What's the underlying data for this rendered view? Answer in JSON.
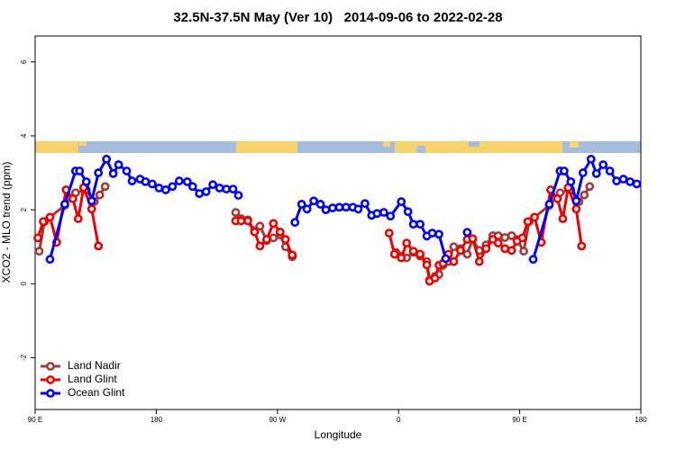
{
  "chart_data": {
    "type": "line",
    "title": "32.5N-37.5N May (Ver 10)   2014-09-06 to 2022-02-28",
    "x_label": "Longitude",
    "y_label": "XCO2 - MLO trend (ppm)",
    "xlim": [
      90,
      540
    ],
    "xticks": [
      {
        "value": 90,
        "label": "90 E"
      },
      180,
      {
        "value": 270,
        "label": "90 W"
      },
      {
        "value": 360,
        "label": "0"
      },
      {
        "value": 450,
        "label": "90 E"
      },
      {
        "value": 540,
        "label": "180"
      }
    ],
    "ylim": [
      -3.4,
      6.7
    ],
    "yticks": [
      -2,
      0,
      2,
      4,
      6
    ],
    "legend": "bottomleft",
    "series": [
      {
        "name": "Land Nadir",
        "color": "#a33a3a",
        "x": [
          93,
          97,
          112,
          120,
          128,
          134,
          138,
          142,
          190,
          239,
          243,
          248,
          253,
          257,
          262,
          267,
          272,
          276,
          281,
          320,
          358,
          362,
          366,
          371,
          376,
          381,
          383,
          387,
          390,
          393,
          397,
          401,
          406,
          411,
          415,
          420,
          425,
          430,
          434,
          439,
          444,
          448,
          453,
          457,
          472,
          480,
          488,
          494,
          498,
          502
        ],
        "values": [
          0.88,
          1.68,
          2.12,
          2.46,
          2.54,
          2.22,
          2.4,
          2.63,
          null,
          1.93,
          1.76,
          1.73,
          1.44,
          1.56,
          1.17,
          1.24,
          1.32,
          1.0,
          0.73,
          null,
          0.85,
          0.75,
          0.7,
          0.85,
          0.75,
          0.6,
          0.1,
          0.2,
          0.25,
          0.5,
          0.6,
          1.0,
          0.95,
          0.8,
          1.2,
          0.9,
          1.05,
          1.3,
          1.3,
          1.25,
          1.3,
          1.2,
          0.88,
          1.68,
          2.12,
          2.46,
          2.54,
          2.22,
          2.4,
          2.63
        ]
      },
      {
        "name": "Land Glint",
        "color": "#ee0000",
        "x": [
          92,
          96,
          101,
          106,
          113,
          118,
          122,
          126,
          132,
          137,
          190,
          239,
          243,
          248,
          253,
          257,
          262,
          267,
          272,
          276,
          281,
          320,
          353,
          357,
          362,
          366,
          371,
          376,
          381,
          383,
          387,
          390,
          393,
          397,
          401,
          406,
          411,
          415,
          420,
          425,
          430,
          434,
          439,
          444,
          448,
          452,
          456,
          461,
          466,
          473,
          478,
          482,
          486,
          492,
          496
        ],
        "values": [
          1.24,
          1.68,
          1.8,
          1.12,
          2.54,
          2.3,
          1.76,
          2.6,
          2.02,
          1.02,
          null,
          1.7,
          1.7,
          1.7,
          1.4,
          1.02,
          1.2,
          1.63,
          1.4,
          1.2,
          0.78,
          null,
          1.37,
          0.8,
          0.7,
          1.1,
          0.88,
          0.8,
          0.51,
          0.07,
          0.15,
          0.5,
          0.55,
          0.8,
          0.6,
          0.9,
          1.2,
          1.22,
          0.6,
          0.95,
          1.2,
          1.1,
          0.95,
          0.9,
          1.15,
          1.24,
          1.68,
          1.8,
          1.12,
          2.54,
          2.3,
          1.76,
          2.6,
          2.02,
          1.02
        ]
      },
      {
        "name": "Ocean Glint",
        "color": "#0000ee",
        "x": [
          101,
          112,
          120,
          123,
          128,
          132,
          137,
          143,
          148,
          152,
          158,
          162,
          168,
          172,
          177,
          182,
          187,
          192,
          197,
          203,
          207,
          212,
          217,
          222,
          227,
          232,
          237,
          241,
          260,
          283,
          288,
          292,
          297,
          302,
          306,
          311,
          316,
          321,
          326,
          330,
          335,
          340,
          344,
          349,
          354,
          362,
          367,
          371,
          376,
          381,
          385,
          390,
          395,
          403,
          411,
          435,
          460,
          472,
          480,
          483,
          488,
          492,
          497,
          503,
          507,
          512,
          517,
          522,
          527,
          532,
          537
        ],
        "values": [
          0.66,
          2.15,
          3.05,
          3.05,
          2.76,
          2.24,
          3.0,
          3.37,
          2.98,
          3.22,
          3.05,
          2.78,
          2.83,
          2.76,
          2.7,
          2.59,
          2.54,
          2.63,
          2.78,
          2.76,
          2.63,
          2.44,
          2.49,
          2.68,
          2.59,
          2.56,
          2.56,
          2.39,
          null,
          1.66,
          2.15,
          2.02,
          2.24,
          2.15,
          2.0,
          2.05,
          2.07,
          2.07,
          2.07,
          2.02,
          2.17,
          1.85,
          1.9,
          1.93,
          1.83,
          2.22,
          1.95,
          1.61,
          1.61,
          1.29,
          1.37,
          1.34,
          0.68,
          null,
          1.39,
          null,
          0.66,
          2.15,
          3.05,
          3.05,
          2.76,
          2.24,
          3.0,
          3.37,
          2.98,
          3.22,
          3.05,
          2.78,
          2.83,
          2.76,
          2.7
        ]
      }
    ]
  }
}
